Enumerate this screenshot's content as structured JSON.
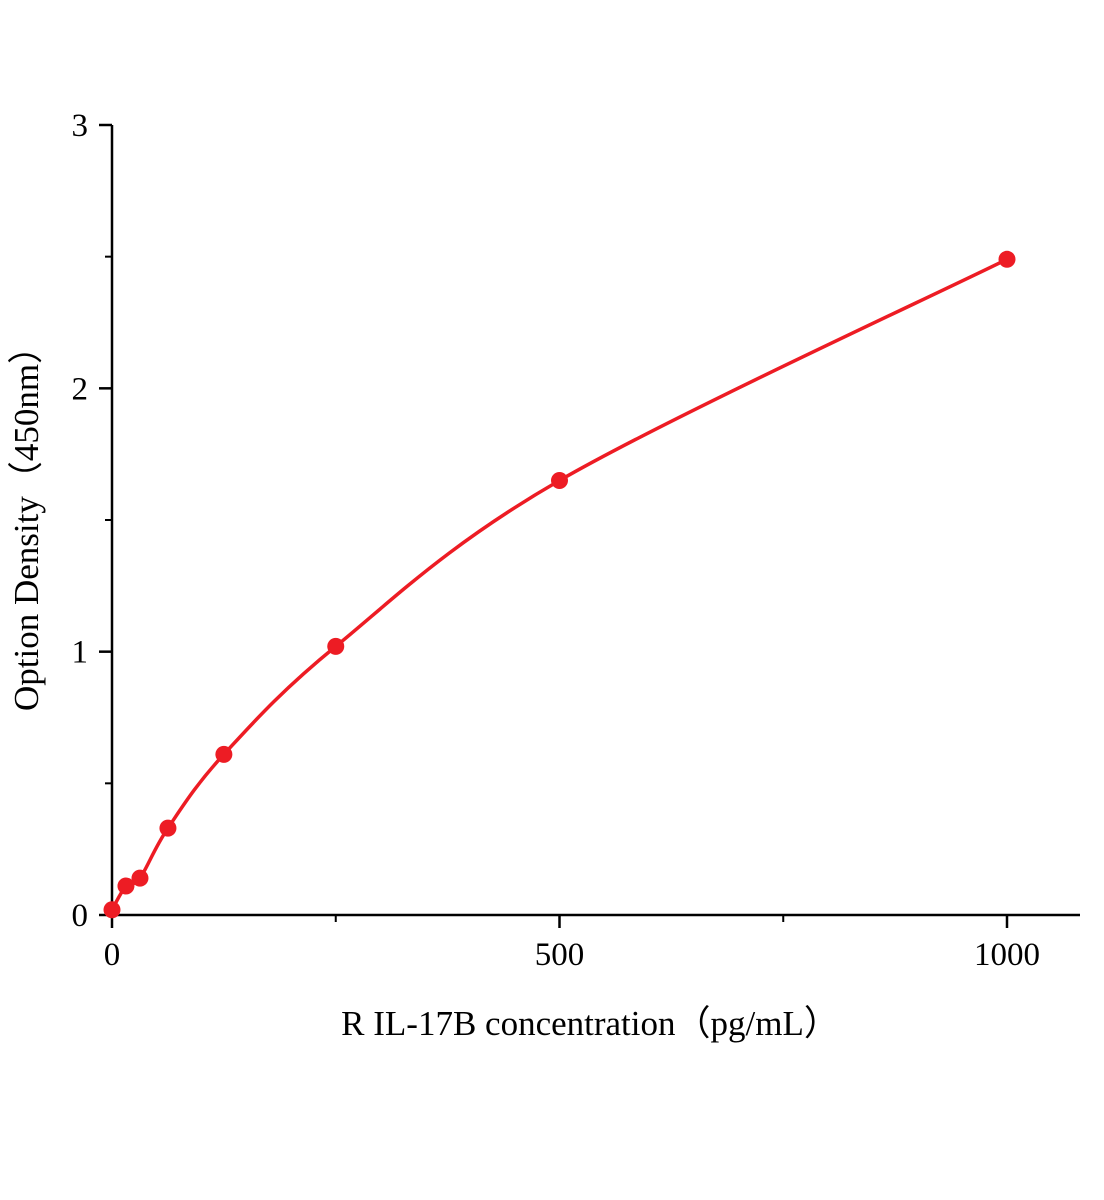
{
  "chart_data": {
    "type": "scatter",
    "title": "",
    "xlabel": "R IL-17B  concentration（pg/mL）",
    "ylabel": "Option Density（450nm）",
    "x": [
      0,
      15.6,
      31.25,
      62.5,
      125,
      250,
      500,
      1000
    ],
    "y": [
      0.02,
      0.11,
      0.14,
      0.33,
      0.61,
      1.02,
      1.65,
      2.49
    ],
    "xlim": [
      0,
      1000
    ],
    "ylim": [
      0,
      3
    ],
    "xticks": [
      0,
      500,
      1000
    ],
    "xticks_minor": [
      250,
      750
    ],
    "yticks": [
      0,
      1,
      2,
      3
    ],
    "yticks_minor": [
      0.5,
      1.5,
      2.5
    ],
    "line_color": "#ed1c24",
    "marker_color": "#ed1c24",
    "marker_radius": 8.5,
    "axis_color": "#000000",
    "grid": false,
    "legend": null,
    "curve": "smooth"
  }
}
